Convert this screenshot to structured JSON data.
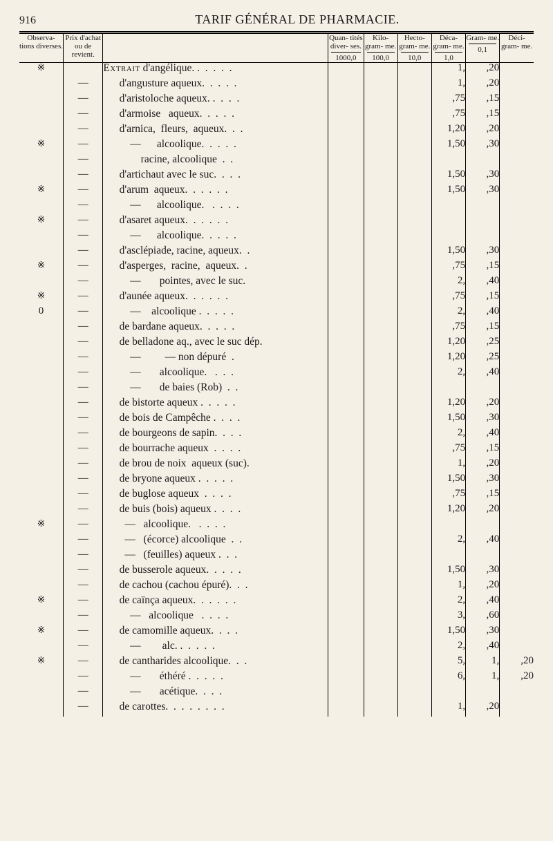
{
  "page_number": "916",
  "page_title": "TARIF GÉNÉRAL DE PHARMACIE.",
  "columns": {
    "obs": {
      "top": "Observa-\ntions\ndiverses.",
      "bot": ""
    },
    "prix": {
      "top": "Prix\nd'achat\nou de\nrevient.",
      "bot": ""
    },
    "desc": {
      "top": "",
      "bot": ""
    },
    "quan": {
      "top": "Quan-\ntités\ndiver-\nses.",
      "bot": "1000,0"
    },
    "kilo": {
      "top": "Kilo-\ngram-\nme.",
      "bot": "100,0"
    },
    "hecto": {
      "top": "Hecto-\ngram-\nme.",
      "bot": "10,0"
    },
    "deca": {
      "top": "Déca-\ngram-\nme.",
      "bot": "1,0"
    },
    "gram": {
      "top": "Gram-\nme.",
      "bot": "0,1"
    },
    "deci": {
      "top": "Déci-\ngram-\nme.",
      "bot": ""
    }
  },
  "rows": [
    {
      "mark": "※",
      "prix": "",
      "desc_html": "<span class='smallcaps'>Extrait</span> d'angélique. .  .  .  .  .",
      "deca": "1,",
      "gram": ",20"
    },
    {
      "prix": "—",
      "desc": "      d'angusture aqueux.  .  .  .  .",
      "deca": "1,",
      "gram": ",20"
    },
    {
      "prix": "—",
      "desc": "      d'aristoloche aqueux. .  .  .  .",
      "deca": ",75",
      "gram": ",15"
    },
    {
      "prix": "—",
      "desc": "      d'armoise   aqueux.  .  .  .  .",
      "deca": ",75",
      "gram": ",15"
    },
    {
      "prix": "—",
      "desc": "      d'arnica,  fleurs,  aqueux.  .  .",
      "deca": "1,20",
      "gram": ",20"
    },
    {
      "mark": "※",
      "prix": "—",
      "desc": "          —      alcoolique.  .  .  .  .",
      "deca": "1,50",
      "gram": ",30"
    },
    {
      "prix": "—",
      "desc": "              racine, alcoolique  .  .",
      "deca": "",
      "gram": ""
    },
    {
      "prix": "—",
      "desc": "      d'artichaut avec le suc.  .  .  .",
      "deca": "1,50",
      "gram": ",30"
    },
    {
      "mark": "※",
      "prix": "—",
      "desc": "      d'arum  aqueux.  .  .  .  .  .",
      "deca": "1,50",
      "gram": ",30"
    },
    {
      "prix": "—",
      "desc": "          —      alcoolique.   .  .  .  .",
      "deca": "",
      "gram": ""
    },
    {
      "mark": "※",
      "prix": "—",
      "desc": "      d'asaret aqueux.  .  .  .  .  .",
      "deca": "",
      "gram": ""
    },
    {
      "prix": "—",
      "desc": "          —      alcoolique.  .  .  .  .",
      "deca": "",
      "gram": ""
    },
    {
      "prix": "—",
      "desc": "      d'asclépiade, racine, aqueux.  .",
      "deca": "1,50",
      "gram": ",30"
    },
    {
      "mark": "※",
      "prix": "—",
      "desc": "      d'asperges,  racine,  aqueux.  .",
      "deca": ",75",
      "gram": ",15"
    },
    {
      "prix": "—",
      "desc": "          —       pointes, avec le suc.",
      "deca": "2,",
      "gram": ",40"
    },
    {
      "mark": "※",
      "prix": "—",
      "desc": "      d'aunée aqueux.  .  .  .  .  .",
      "deca": ",75",
      "gram": ",15"
    },
    {
      "obs": "0",
      "prix": "—",
      "desc": "          —    alcoolique .  .  .  .  .",
      "deca": "2,",
      "gram": ",40"
    },
    {
      "prix": "—",
      "desc": "      de bardane aqueux.  .  .  .  .",
      "deca": ",75",
      "gram": ",15"
    },
    {
      "prix": "—",
      "desc": "      de belladone aq., avec le suc dép.",
      "deca": "1,20",
      "gram": ",25"
    },
    {
      "prix": "—",
      "desc": "          —         — non dépuré  .",
      "deca": "1,20",
      "gram": ",25"
    },
    {
      "prix": "—",
      "desc": "          —       alcoolique.   .  .  .",
      "deca": "2,",
      "gram": ",40"
    },
    {
      "prix": "—",
      "desc": "          —       de baies (Rob)  .  .",
      "deca": "",
      "gram": ""
    },
    {
      "prix": "—",
      "desc": "      de bistorte aqueux .  .  .  .  .",
      "deca": "1,20",
      "gram": ",20"
    },
    {
      "prix": "—",
      "desc": "      de bois de Campêche .  .  .  .",
      "deca": "1,50",
      "gram": ",30"
    },
    {
      "prix": "—",
      "desc": "      de bourgeons de sapin.  .  .  .",
      "deca": "2,",
      "gram": ",40"
    },
    {
      "prix": "—",
      "desc": "      de bourrache aqueux  .  .  .  .",
      "deca": ",75",
      "gram": ",15"
    },
    {
      "prix": "—",
      "desc": "      de brou de noix  aqueux (suc).",
      "deca": "1,",
      "gram": ",20"
    },
    {
      "prix": "—",
      "desc": "      de bryone aqueux .  .  .  .  .",
      "deca": "1,50",
      "gram": ",30"
    },
    {
      "prix": "—",
      "desc": "      de buglose aqueux  .  .  .  .",
      "deca": ",75",
      "gram": ",15"
    },
    {
      "prix": "—",
      "desc": "      de buis (bois) aqueux .  .  .  .",
      "deca": "1,20",
      "gram": ",20"
    },
    {
      "mark": "※",
      "prix": "—",
      "desc": "        —   alcoolique.   .  .  .  .",
      "deca": "",
      "gram": ""
    },
    {
      "prix": "—",
      "desc": "        —   (écorce) alcoolique  .  .",
      "deca": "2,",
      "gram": ",40"
    },
    {
      "prix": "—",
      "desc": "        —   (feuilles) aqueux .  .  .",
      "deca": "",
      "gram": ""
    },
    {
      "prix": "—",
      "desc": "      de busserole aqueux.  .  .  .  .",
      "deca": "1,50",
      "gram": ",30"
    },
    {
      "prix": "—",
      "desc": "      de cachou (cachou épuré).  .  .",
      "deca": "1,",
      "gram": ",20"
    },
    {
      "mark": "※",
      "prix": "—",
      "desc": "      de caïnça aqueux.  .  .  .  .  .",
      "deca": "2,",
      "gram": ",40"
    },
    {
      "prix": "—",
      "desc": "          —   alcoolique   .  .  .  .",
      "deca": "3,",
      "gram": ",60"
    },
    {
      "mark": "※",
      "prix": "—",
      "desc": "      de camomille aqueux.  .  .  .",
      "deca": "1,50",
      "gram": ",30"
    },
    {
      "prix": "—",
      "desc": "          —        alc. .  .  .  .  .",
      "deca": "2,",
      "gram": ",40"
    },
    {
      "mark": "※",
      "prix": "—",
      "desc": "      de cantharides alcoolique.  .  .",
      "deca": "5,",
      "gram": "1,",
      "deci": ",20"
    },
    {
      "prix": "—",
      "desc": "          —       éthéré .  .  .  .  .",
      "deca": "6,",
      "gram": "1,",
      "deci": ",20"
    },
    {
      "prix": "—",
      "desc": "          —       acétique.  .  .  .",
      "deca": "",
      "gram": ""
    },
    {
      "prix": "—",
      "desc": "      de carottes.  .  .  .  .  .  .  .",
      "deca": "1,",
      "gram": ",20"
    }
  ]
}
